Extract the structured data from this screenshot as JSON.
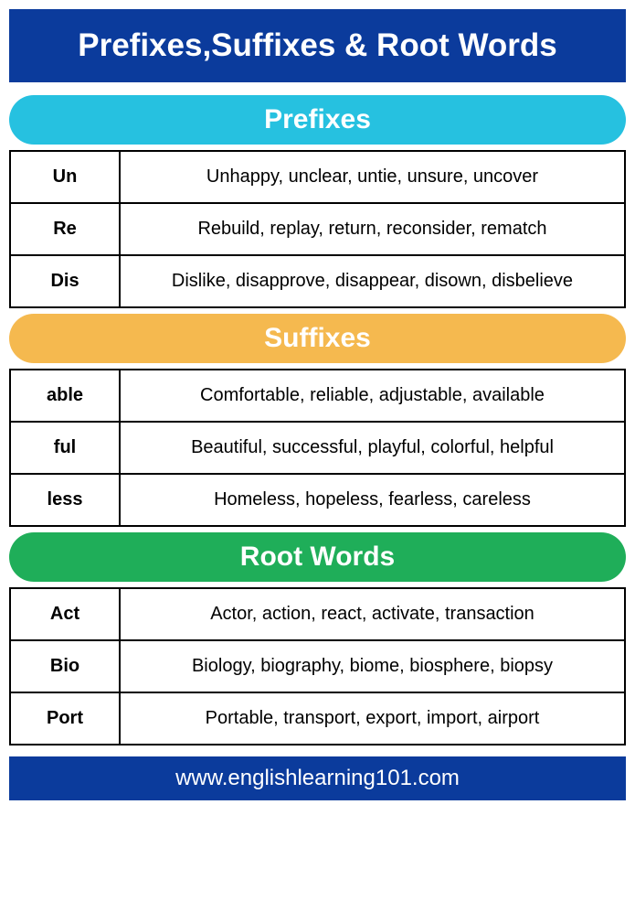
{
  "page": {
    "title": "Prefixes,Suffixes & Root Words",
    "footer": "www.englishlearning101.com",
    "colors": {
      "header_bg": "#0b3b9c",
      "text_white": "#ffffff",
      "border": "#000000"
    }
  },
  "sections": [
    {
      "title": "Prefixes",
      "header_bg": "#26c1e0",
      "rows": [
        {
          "term": "Un",
          "examples": "Unhappy, unclear, untie, unsure, uncover"
        },
        {
          "term": "Re",
          "examples": "Rebuild, replay, return, reconsider, rematch"
        },
        {
          "term": "Dis",
          "examples": "Dislike, disapprove, disappear, disown, disbelieve"
        }
      ]
    },
    {
      "title": "Suffixes",
      "header_bg": "#f5b94f",
      "rows": [
        {
          "term": "able",
          "examples": "Comfortable, reliable, adjustable, available"
        },
        {
          "term": "ful",
          "examples": "Beautiful, successful, playful, colorful, helpful"
        },
        {
          "term": "less",
          "examples": "Homeless, hopeless, fearless, careless"
        }
      ]
    },
    {
      "title": "Root Words",
      "header_bg": "#1fae59",
      "rows": [
        {
          "term": "Act",
          "examples": "Actor, action, react, activate, transaction"
        },
        {
          "term": "Bio",
          "examples": "Biology, biography, biome, biosphere, biopsy"
        },
        {
          "term": "Port",
          "examples": "Portable, transport, export, import, airport"
        }
      ]
    }
  ]
}
